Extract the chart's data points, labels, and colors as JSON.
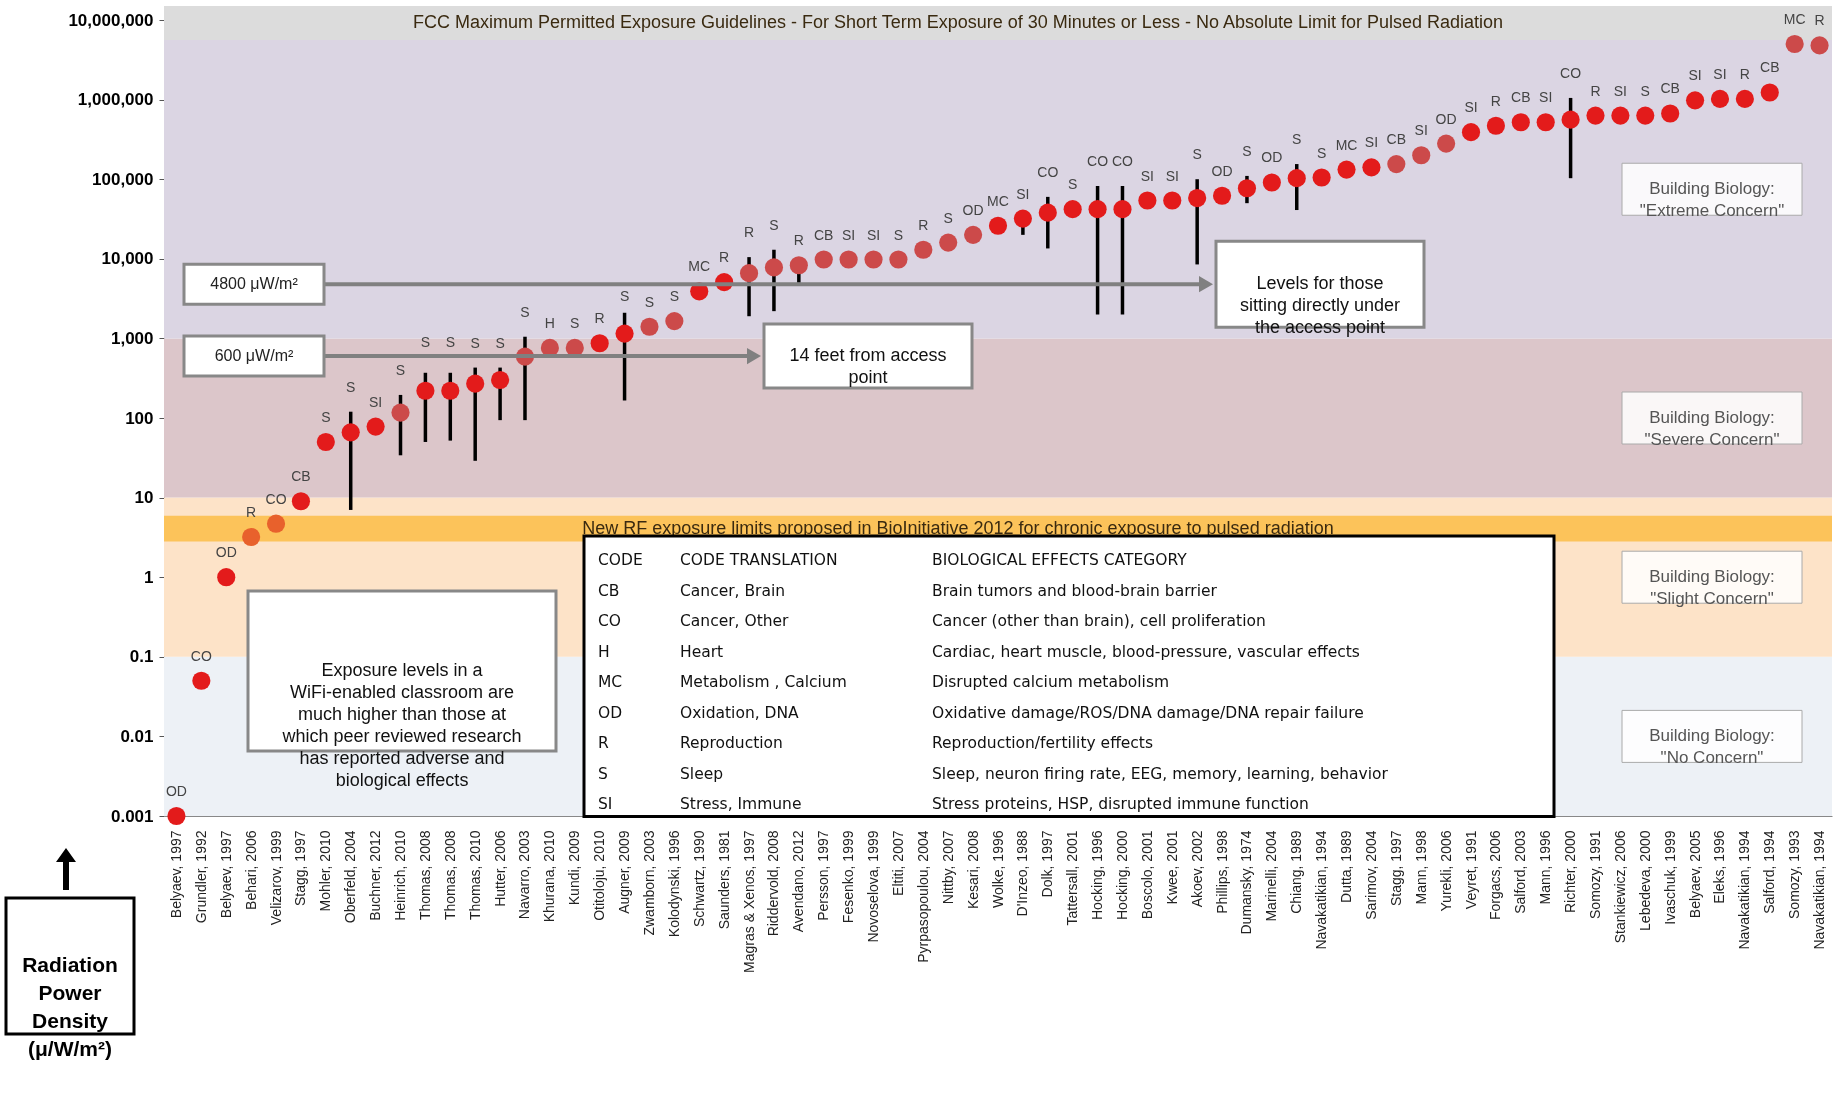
{
  "chart_data": {
    "type": "scatter",
    "marker": "circle",
    "ylabel": "Radiation Power Density (μ/W/m²)",
    "categories": [
      "Belyaev, 1997",
      "Grundler, 1992",
      "Belyaev, 1997",
      "Behari, 2006",
      "Velizarov, 1999",
      "Stagg, 1997",
      "Mohler, 2010",
      "Oberfeld, 2004",
      "Buchner, 2012",
      "Heinrich, 2010",
      "Thomas, 2008",
      "Thomas, 2008",
      "Thomas, 2010",
      "Hutter, 2006",
      "Navarro, 2003",
      "Khurana, 2010",
      "Kundi, 2009",
      "Otitoloju, 2010",
      "Augner, 2009",
      "Zwamborn, 2003",
      "Kolodynski, 1996",
      "Schwartz, 1990",
      "Saunders, 1981",
      "Magras & Xenos, 1997",
      "Riddervold, 2008",
      "Avendano, 2012",
      "Persson, 1997",
      "Fesenko, 1999",
      "Novoselova, 1999",
      "Eltiti, 2007",
      "Pyrpasopoulou, 2004",
      "Nittby, 2007",
      "Kesari, 2008",
      "Wolke, 1996",
      "D'Inzeo, 1988",
      "Dolk, 1997",
      "Tattersall, 2001",
      "Hocking, 1996",
      "Hocking, 2000",
      "Boscolo, 2001",
      "Kwee, 2001",
      "Akoev, 2002",
      "Phillips, 1998",
      "Dumansky, 1974",
      "Marinelli, 2004",
      "Chiang, 1989",
      "Navakatikian, 1994",
      "Dutta, 1989",
      "Sarimov, 2004",
      "Stagg, 1997",
      "Mann, 1998",
      "Yurekli, 2006",
      "Veyret, 1991",
      "Forgacs, 2006",
      "Salford, 2003",
      "Mann, 1996",
      "Richter, 2000",
      "Somozy, 1991",
      "Stankiewicz, 2006",
      "Lebedeva, 2000",
      "Ivaschuk, 1999",
      "Belyaev, 2005",
      "Eleks, 1996",
      "Navakatikian, 1994",
      "Salford, 1994",
      "Somozy, 1993",
      "Navakatikian, 1994"
    ],
    "values": [
      0.001,
      0.05,
      1,
      3.2,
      4.7,
      9,
      50,
      66,
      78,
      117,
      220,
      220,
      270,
      300,
      590,
      760,
      760,
      870,
      1150,
      1400,
      1650,
      3900,
      5100,
      6600,
      7800,
      8300,
      9800,
      9800,
      9800,
      9800,
      13000,
      16000,
      20000,
      26000,
      32000,
      38000,
      42000,
      42000,
      42000,
      54000,
      54000,
      58000,
      62000,
      77000,
      91000,
      103000,
      105000,
      132000,
      141000,
      155000,
      200000,
      280000,
      390000,
      470000,
      520000,
      520000,
      560000,
      630000,
      630000,
      630000,
      670000,
      980000,
      1020000,
      1020000,
      1230000,
      5000000,
      4800000
    ],
    "colors": [
      "#e31b1b",
      "#e31b1b",
      "#e31b1b",
      "#e8612c",
      "#e8612c",
      "#e31b1b",
      "#e31b1b",
      "#e31b1b",
      "#e31b1b",
      "#cc4a4a",
      "#e31b1b",
      "#e31b1b",
      "#e31b1b",
      "#e31b1b",
      "#cc4a4a",
      "#cc4a4a",
      "#cc4a4a",
      "#e31b1b",
      "#e31b1b",
      "#cc4a4a",
      "#cc4a4a",
      "#e31b1b",
      "#e31b1b",
      "#cc4a4a",
      "#cc4a4a",
      "#cc4a4a",
      "#cc4a4a",
      "#cc4a4a",
      "#cc4a4a",
      "#cc4a4a",
      "#cc4a4a",
      "#cc4a4a",
      "#cc4a4a",
      "#e31b1b",
      "#e31b1b",
      "#e31b1b",
      "#e31b1b",
      "#e31b1b",
      "#e31b1b",
      "#e31b1b",
      "#e31b1b",
      "#e31b1b",
      "#e31b1b",
      "#e31b1b",
      "#e31b1b",
      "#e31b1b",
      "#e31b1b",
      "#e31b1b",
      "#e31b1b",
      "#cc4a4a",
      "#cc4a4a",
      "#cc4a4a",
      "#e31b1b",
      "#e31b1b",
      "#e31b1b",
      "#e31b1b",
      "#e31b1b",
      "#e31b1b",
      "#e31b1b",
      "#e31b1b",
      "#e31b1b",
      "#e31b1b",
      "#e31b1b",
      "#e31b1b",
      "#e31b1b",
      "#cc4a4a",
      "#cc4a4a"
    ],
    "value_labels": [
      "OD",
      "CO",
      "OD",
      "R",
      "CO",
      "CB",
      "S",
      "S",
      "SI",
      "S",
      "S",
      "S",
      "S",
      "S",
      "S",
      "H",
      "S",
      "R",
      "S",
      "S",
      "S",
      "MC",
      "R",
      "R",
      "S",
      "R",
      "CB",
      "SI",
      "SI",
      "S",
      "R",
      "S",
      "OD",
      "MC",
      "SI",
      "CO",
      "S",
      "CO",
      "CO",
      "SI",
      "SI",
      "S",
      "OD",
      "S",
      "OD",
      "S",
      "S",
      "MC",
      "SI",
      "CB",
      "SI",
      "OD",
      "SI",
      "R",
      "CB",
      "SI",
      "CO",
      "R",
      "SI",
      "S",
      "CB",
      "SI",
      "SI",
      "R",
      "CB",
      "MC",
      "R"
    ],
    "errors": [
      null,
      null,
      null,
      null,
      null,
      null,
      null,
      [
        7,
        120
      ],
      null,
      [
        34,
        195
      ],
      [
        50,
        370
      ],
      [
        52,
        370
      ],
      [
        29,
        430
      ],
      [
        94,
        430
      ],
      [
        94,
        1050
      ],
      null,
      null,
      null,
      [
        166,
        2100
      ],
      null,
      null,
      null,
      null,
      [
        1900,
        10500
      ],
      [
        2200,
        13000
      ],
      [
        5000,
        8300
      ],
      null,
      null,
      null,
      null,
      null,
      null,
      null,
      null,
      [
        20000,
        32000
      ],
      [
        13500,
        60000
      ],
      null,
      [
        2000,
        82000
      ],
      [
        2000,
        82000
      ],
      null,
      null,
      [
        8500,
        100000
      ],
      null,
      [
        50000,
        110000
      ],
      null,
      [
        41000,
        155000
      ],
      null,
      null,
      null,
      null,
      null,
      null,
      null,
      null,
      null,
      null,
      [
        103000,
        1050000
      ],
      null,
      null,
      null,
      null,
      null,
      null,
      null,
      null,
      null,
      null
    ],
    "ylim": [
      0.001,
      15000000
    ],
    "log": true,
    "yticks": [
      0.001,
      0.01,
      0.1,
      1,
      10,
      100,
      {
        "value": 1000,
        "label": "1,000"
      },
      {
        "value": 10000,
        "label": "10,000"
      },
      {
        "value": 100000,
        "label": "100,000"
      },
      {
        "value": 1000000,
        "label": "1,000,000"
      },
      {
        "value": 10000000,
        "label": "10,000,000"
      }
    ],
    "bands": [
      {
        "axis": "y",
        "from": 0.001,
        "to": 0.1,
        "label": "Building Biology: \"No Concern\"",
        "color": "#edf1f6"
      },
      {
        "axis": "y",
        "from": 0.1,
        "to": 10,
        "label": "Building Biology: \"Slight Concern\"",
        "color": "#fde3c8"
      },
      {
        "axis": "y",
        "from": 10,
        "to": 1000,
        "label": "Building Biology: \"Severe Concern\"",
        "color": "#dcc6ca"
      },
      {
        "axis": "y",
        "from": 1000,
        "to": 5600000,
        "label": "Building Biology: \"Extreme Concern\"",
        "color": "#dbd5e3"
      },
      {
        "axis": "y",
        "from": 5600000,
        "to": 15000000,
        "label": "FCC Maximum Permitted Exposure Guidelines - For Short Term Exposure of 30 Minutes or Less - No Absolute Limit for Pulsed Radiation",
        "color": "#dcdcdc"
      },
      {
        "axis": "y",
        "from": 2.8,
        "to": 5.9,
        "label": "New RF exposure limits proposed in BioInitiative 2012 for chronic exposure to pulsed radiation",
        "color": "#fcc35a"
      }
    ],
    "ref_lines": [
      {
        "axis": "y",
        "value": 4800,
        "label": "4800 μW/m²",
        "color": "#808080"
      },
      {
        "axis": "y",
        "value": 600,
        "label": "600 μW/m²",
        "color": "#808080"
      }
    ],
    "annotations": [
      "Exposure levels in a WiFi-enabled classroom are much higher than those at which peer reviewed research has reported adverse and biological effects",
      "CODE",
      "CODE TRANSLATION",
      "BIOLOGICAL EFFECTS CATEGORY",
      "CB",
      "Cancer, Brain",
      "Brain tumors and blood-brain barrier",
      "CO",
      "Cancer, Other",
      "Cancer (other than brain), cell proliferation",
      "H",
      "Heart",
      "Cardiac, heart muscle, blood-pressure, vascular effects",
      "MC",
      "Metabolism , Calcium",
      "Disrupted calcium metabolism",
      "OD",
      "Oxidation, DNA",
      "Oxidative damage/ROS/DNA damage/DNA repair failure",
      "R",
      "Reproduction",
      "Reproduction/fertility effects",
      "S",
      "Sleep",
      "Sleep, neuron firing rate, EEG, memory, learning, behavior",
      "SI",
      "Stress, Immune",
      "Stress proteins, HSP, disrupted immune function",
      "Levels for those sitting directly under the access point",
      "14 feet from access point"
    ]
  }
}
